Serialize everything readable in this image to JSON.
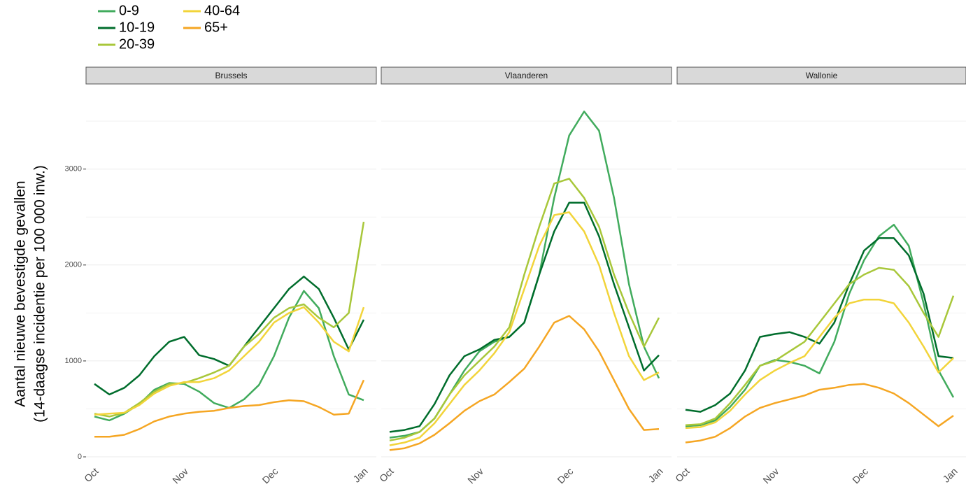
{
  "chart_data": {
    "type": "line",
    "y_label": [
      "Aantal nieuwe bevestigde gevallen",
      "(14-daagse incidentie per 100 000 inw.)"
    ],
    "ylim": [
      -80,
      3800
    ],
    "yticks": [
      0,
      1000,
      2000,
      3000
    ],
    "y_minor_ticks": [
      500,
      1500,
      2500,
      3500
    ],
    "grid": true,
    "legend": "top-left",
    "categories": [
      "Oct",
      null,
      null,
      null,
      null,
      null,
      "Nov",
      null,
      null,
      null,
      null,
      null,
      "Dec",
      null,
      null,
      null,
      null,
      null,
      "Jan"
    ],
    "series": [
      {
        "name": "0-9",
        "color": "#41ab5d"
      },
      {
        "name": "10-19",
        "color": "#006d2c"
      },
      {
        "name": "20-39",
        "color": "#a8c73a"
      },
      {
        "name": "40-64",
        "color": "#f2d43a"
      },
      {
        "name": "65+",
        "color": "#f5a623"
      }
    ],
    "panels": [
      {
        "title": "Brussels",
        "series": [
          {
            "values": [
              420,
              380,
              450,
              550,
              700,
              770,
              760,
              680,
              560,
              510,
              600,
              750,
              1050,
              1450,
              1730,
              1550,
              1050,
              650,
              590
            ]
          },
          {
            "values": [
              760,
              650,
              720,
              850,
              1050,
              1200,
              1250,
              1060,
              1020,
              950,
              1150,
              1350,
              1550,
              1750,
              1880,
              1750,
              1450,
              1120,
              1430
            ]
          },
          {
            "values": [
              450,
              420,
              460,
              560,
              680,
              760,
              770,
              820,
              880,
              950,
              1150,
              1280,
              1450,
              1550,
              1590,
              1450,
              1350,
              1500,
              2450
            ]
          },
          {
            "values": [
              440,
              450,
              460,
              540,
              660,
              740,
              780,
              780,
              820,
              900,
              1050,
              1200,
              1400,
              1500,
              1560,
              1400,
              1200,
              1100,
              1560
            ]
          },
          {
            "values": [
              210,
              210,
              230,
              290,
              370,
              420,
              450,
              470,
              480,
              510,
              530,
              540,
              570,
              590,
              580,
              520,
              440,
              450,
              800
            ]
          }
        ]
      },
      {
        "title": "Vlaanderen",
        "series": [
          {
            "values": [
              200,
              220,
              260,
              400,
              650,
              900,
              1100,
              1200,
              1250,
              1400,
              1900,
              2700,
              3350,
              3600,
              3400,
              2700,
              1800,
              1150,
              820
            ]
          },
          {
            "values": [
              260,
              280,
              320,
              550,
              850,
              1050,
              1120,
              1220,
              1250,
              1400,
              1900,
              2350,
              2650,
              2650,
              2300,
              1800,
              1350,
              900,
              1060
            ]
          },
          {
            "values": [
              170,
              200,
              260,
              400,
              650,
              850,
              1000,
              1150,
              1350,
              1900,
              2400,
              2850,
              2900,
              2700,
              2400,
              1900,
              1500,
              1150,
              1450
            ]
          },
          {
            "values": [
              120,
              150,
              200,
              350,
              550,
              750,
              900,
              1080,
              1300,
              1750,
              2200,
              2520,
              2550,
              2350,
              2000,
              1500,
              1050,
              800,
              880
            ]
          },
          {
            "values": [
              70,
              90,
              140,
              230,
              350,
              480,
              580,
              650,
              780,
              920,
              1150,
              1400,
              1470,
              1330,
              1100,
              800,
              500,
              280,
              290
            ]
          }
        ]
      },
      {
        "title": "Wallonie",
        "series": [
          {
            "values": [
              320,
              330,
              380,
              520,
              700,
              950,
              1010,
              990,
              950,
              870,
              1200,
              1700,
              2050,
              2300,
              2420,
              2200,
              1600,
              900,
              620
            ]
          },
          {
            "values": [
              490,
              470,
              540,
              660,
              900,
              1250,
              1280,
              1300,
              1250,
              1180,
              1400,
              1800,
              2150,
              2280,
              2280,
              2100,
              1700,
              1050,
              1030
            ]
          },
          {
            "values": [
              330,
              340,
              400,
              560,
              750,
              950,
              1000,
              1100,
              1200,
              1400,
              1600,
              1800,
              1900,
              1970,
              1950,
              1780,
              1500,
              1250,
              1680
            ]
          },
          {
            "values": [
              300,
              310,
              360,
              480,
              650,
              800,
              900,
              980,
              1050,
              1250,
              1450,
              1600,
              1640,
              1640,
              1600,
              1400,
              1150,
              880,
              1030
            ]
          },
          {
            "values": [
              150,
              170,
              210,
              300,
              420,
              510,
              560,
              600,
              640,
              700,
              720,
              750,
              760,
              720,
              660,
              560,
              440,
              320,
              430
            ]
          }
        ]
      }
    ]
  }
}
